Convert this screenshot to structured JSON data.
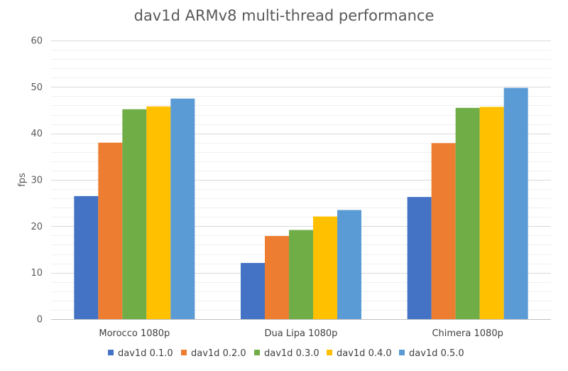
{
  "chart_data": {
    "type": "bar",
    "title": "dav1d ARMv8 multi-thread performance",
    "xlabel": "",
    "ylabel": "fps",
    "ylim": [
      0,
      60
    ],
    "yticks": [
      0,
      10,
      20,
      30,
      40,
      50,
      60
    ],
    "minor_grid_step": 2,
    "grid": true,
    "legend_position": "bottom",
    "categories": [
      "Morocco 1080p",
      "Dua Lipa 1080p",
      "Chimera 1080p"
    ],
    "series": [
      {
        "name": "dav1d 0.1.0",
        "color": "#4472C4",
        "values": [
          26.5,
          12.1,
          26.3
        ]
      },
      {
        "name": "dav1d 0.2.0",
        "color": "#ED7D31",
        "values": [
          38.0,
          17.9,
          37.9
        ]
      },
      {
        "name": "dav1d 0.3.0",
        "color": "#70AD47",
        "values": [
          45.2,
          19.2,
          45.5
        ]
      },
      {
        "name": "dav1d 0.4.0",
        "color": "#FFC000",
        "values": [
          45.8,
          22.1,
          45.7
        ]
      },
      {
        "name": "dav1d 0.5.0",
        "color": "#5B9BD5",
        "values": [
          47.5,
          23.5,
          49.8
        ]
      }
    ]
  }
}
